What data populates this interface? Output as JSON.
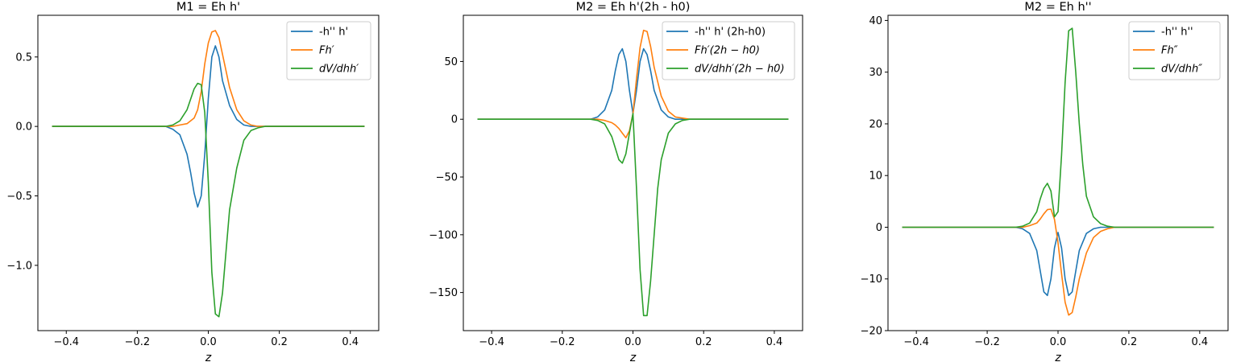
{
  "chart_data": [
    {
      "type": "line",
      "title": "M1 = Eh h'",
      "xlabel": "z",
      "xlim": [
        -0.48,
        0.48
      ],
      "ylim": [
        -1.47,
        0.8
      ],
      "xticks": [
        -0.4,
        -0.2,
        0.0,
        0.2,
        0.4
      ],
      "xtick_labels": [
        "−0.4",
        "−0.2",
        "0.0",
        "0.2",
        "0.4"
      ],
      "yticks": [
        -1.0,
        -0.5,
        0.0,
        0.5
      ],
      "ytick_labels": [
        "−1.0",
        "−0.5",
        "0.0",
        "0.5"
      ],
      "legend_position": "top-right",
      "series": [
        {
          "name": "-h'' h'",
          "color": "#1f77b4",
          "x": [
            -0.44,
            -0.12,
            -0.1,
            -0.08,
            -0.06,
            -0.05,
            -0.04,
            -0.03,
            -0.02,
            -0.01,
            0.0,
            0.01,
            0.02,
            0.03,
            0.04,
            0.06,
            0.08,
            0.1,
            0.12,
            0.44
          ],
          "y": [
            0,
            0,
            -0.02,
            -0.06,
            -0.2,
            -0.33,
            -0.48,
            -0.58,
            -0.5,
            -0.2,
            0.2,
            0.5,
            0.58,
            0.5,
            0.33,
            0.15,
            0.05,
            0.01,
            0,
            0
          ]
        },
        {
          "name": "Fh′",
          "color": "#ff7f0e",
          "x": [
            -0.44,
            -0.1,
            -0.08,
            -0.06,
            -0.04,
            -0.03,
            -0.02,
            -0.01,
            0.0,
            0.01,
            0.02,
            0.03,
            0.04,
            0.05,
            0.06,
            0.08,
            0.1,
            0.12,
            0.14,
            0.44
          ],
          "y": [
            0,
            0,
            0.01,
            0.02,
            0.06,
            0.12,
            0.25,
            0.45,
            0.6,
            0.68,
            0.69,
            0.64,
            0.52,
            0.4,
            0.28,
            0.12,
            0.04,
            0.01,
            0,
            0
          ]
        },
        {
          "name": "dV/dhh′",
          "color": "#2ca02c",
          "x": [
            -0.44,
            -0.12,
            -0.1,
            -0.08,
            -0.06,
            -0.04,
            -0.03,
            -0.02,
            -0.01,
            0.0,
            0.01,
            0.02,
            0.03,
            0.04,
            0.05,
            0.06,
            0.08,
            0.1,
            0.12,
            0.14,
            0.16,
            0.44
          ],
          "y": [
            0,
            0,
            0.01,
            0.04,
            0.12,
            0.27,
            0.31,
            0.3,
            0.1,
            -0.4,
            -1.05,
            -1.35,
            -1.37,
            -1.2,
            -0.9,
            -0.6,
            -0.3,
            -0.1,
            -0.03,
            -0.01,
            0,
            0
          ]
        }
      ]
    },
    {
      "type": "line",
      "title": "M2 = Eh h'(2h - h0)",
      "xlabel": "z",
      "xlim": [
        -0.48,
        0.48
      ],
      "ylim": [
        -183,
        90
      ],
      "xticks": [
        -0.4,
        -0.2,
        0.0,
        0.2,
        0.4
      ],
      "xtick_labels": [
        "−0.4",
        "−0.2",
        "0.0",
        "0.2",
        "0.4"
      ],
      "yticks": [
        -150,
        -100,
        -50,
        0,
        50
      ],
      "ytick_labels": [
        "−150",
        "−100",
        "−50",
        "0",
        "50"
      ],
      "legend_position": "top-right",
      "series": [
        {
          "name": "-h'' h' (2h-h0)",
          "color": "#1f77b4",
          "x": [
            -0.44,
            -0.12,
            -0.1,
            -0.08,
            -0.06,
            -0.05,
            -0.04,
            -0.03,
            -0.02,
            -0.01,
            0.0,
            0.01,
            0.02,
            0.03,
            0.04,
            0.05,
            0.06,
            0.08,
            0.1,
            0.12,
            0.44
          ],
          "y": [
            0,
            0,
            2,
            8,
            25,
            42,
            56,
            61,
            50,
            25,
            5,
            25,
            50,
            61,
            56,
            42,
            25,
            8,
            2,
            0,
            0
          ]
        },
        {
          "name": "Fh′(2h − h0)",
          "color": "#ff7f0e",
          "x": [
            -0.44,
            -0.1,
            -0.08,
            -0.06,
            -0.05,
            -0.04,
            -0.03,
            -0.02,
            -0.01,
            0.0,
            0.01,
            0.02,
            0.03,
            0.04,
            0.05,
            0.06,
            0.08,
            0.1,
            0.12,
            0.14,
            0.16,
            0.44
          ],
          "y": [
            0,
            0,
            -1,
            -3,
            -5,
            -8,
            -12,
            -16,
            -10,
            5,
            35,
            62,
            77,
            76,
            63,
            45,
            20,
            7,
            2,
            1,
            0,
            0
          ]
        },
        {
          "name": "dV/dhh′(2h − h0)",
          "color": "#2ca02c",
          "x": [
            -0.44,
            -0.12,
            -0.1,
            -0.08,
            -0.06,
            -0.05,
            -0.04,
            -0.03,
            -0.02,
            -0.01,
            0.0,
            0.01,
            0.02,
            0.03,
            0.04,
            0.05,
            0.06,
            0.07,
            0.08,
            0.1,
            0.12,
            0.14,
            0.16,
            0.44
          ],
          "y": [
            0,
            0,
            -1,
            -4,
            -15,
            -25,
            -35,
            -38,
            -30,
            -12,
            5,
            -60,
            -130,
            -170,
            -170,
            -140,
            -100,
            -60,
            -35,
            -12,
            -4,
            -1,
            0,
            0
          ]
        }
      ]
    },
    {
      "type": "line",
      "title": "M2 = Eh h''",
      "xlabel": "z",
      "xlim": [
        -0.48,
        0.48
      ],
      "ylim": [
        -20,
        41
      ],
      "xticks": [
        -0.4,
        -0.2,
        0.0,
        0.2,
        0.4
      ],
      "xtick_labels": [
        "−0.4",
        "−0.2",
        "0.0",
        "0.2",
        "0.4"
      ],
      "yticks": [
        -20,
        -10,
        0,
        10,
        20,
        30,
        40
      ],
      "ytick_labels": [
        "−20",
        "−10",
        "0",
        "10",
        "20",
        "30",
        "40"
      ],
      "legend_position": "top-right",
      "series": [
        {
          "name": "-h'' h''",
          "color": "#1f77b4",
          "x": [
            -0.44,
            -0.12,
            -0.1,
            -0.08,
            -0.06,
            -0.05,
            -0.04,
            -0.03,
            -0.02,
            -0.01,
            0.0,
            0.01,
            0.02,
            0.03,
            0.04,
            0.05,
            0.06,
            0.08,
            0.1,
            0.12,
            0.44
          ],
          "y": [
            0,
            0,
            -0.3,
            -1.2,
            -4.5,
            -8.5,
            -12.5,
            -13.2,
            -10,
            -4,
            -1,
            -4,
            -10,
            -13.2,
            -12.5,
            -8.5,
            -4.5,
            -1.2,
            -0.3,
            0,
            0
          ]
        },
        {
          "name": "Fh″",
          "color": "#ff7f0e",
          "x": [
            -0.44,
            -0.1,
            -0.08,
            -0.06,
            -0.05,
            -0.04,
            -0.03,
            -0.02,
            -0.01,
            0.0,
            0.01,
            0.02,
            0.03,
            0.04,
            0.05,
            0.06,
            0.08,
            0.1,
            0.12,
            0.14,
            0.16,
            0.44
          ],
          "y": [
            0,
            0,
            0.3,
            0.8,
            1.6,
            2.6,
            3.4,
            3.5,
            1.5,
            -3,
            -9,
            -14.5,
            -17,
            -16.5,
            -13.5,
            -10,
            -5,
            -2,
            -0.8,
            -0.3,
            0,
            0
          ]
        },
        {
          "name": "dV/dhh″",
          "color": "#2ca02c",
          "x": [
            -0.44,
            -0.12,
            -0.1,
            -0.08,
            -0.06,
            -0.05,
            -0.04,
            -0.03,
            -0.02,
            -0.01,
            0.0,
            0.01,
            0.02,
            0.03,
            0.04,
            0.05,
            0.06,
            0.07,
            0.08,
            0.1,
            0.12,
            0.14,
            0.16,
            0.44
          ],
          "y": [
            0,
            0,
            0.2,
            0.8,
            3,
            5.5,
            7.5,
            8.5,
            7,
            2,
            3,
            14,
            28,
            38,
            38.5,
            30,
            20,
            12,
            6,
            2,
            0.7,
            0.2,
            0,
            0
          ]
        }
      ]
    }
  ]
}
